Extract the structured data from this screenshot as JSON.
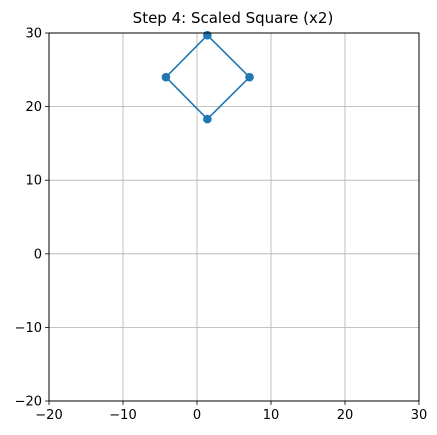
{
  "chart_data": {
    "type": "line",
    "title": "Step 4: Scaled Square (x2)",
    "xlabel": "",
    "ylabel": "",
    "xlim": [
      -20,
      30
    ],
    "ylim": [
      -20,
      30
    ],
    "x_ticks": [
      -20,
      -10,
      0,
      10,
      20,
      30
    ],
    "y_ticks": [
      -20,
      -10,
      0,
      10,
      20,
      30
    ],
    "grid": true,
    "series": [
      {
        "color": "#1f77b4",
        "closed": true,
        "markers": true,
        "points": [
          {
            "x": 1.4,
            "y": 29.7
          },
          {
            "x": 7.1,
            "y": 24.0
          },
          {
            "x": 1.4,
            "y": 18.3
          },
          {
            "x": -4.2,
            "y": 24.0
          }
        ]
      }
    ]
  }
}
